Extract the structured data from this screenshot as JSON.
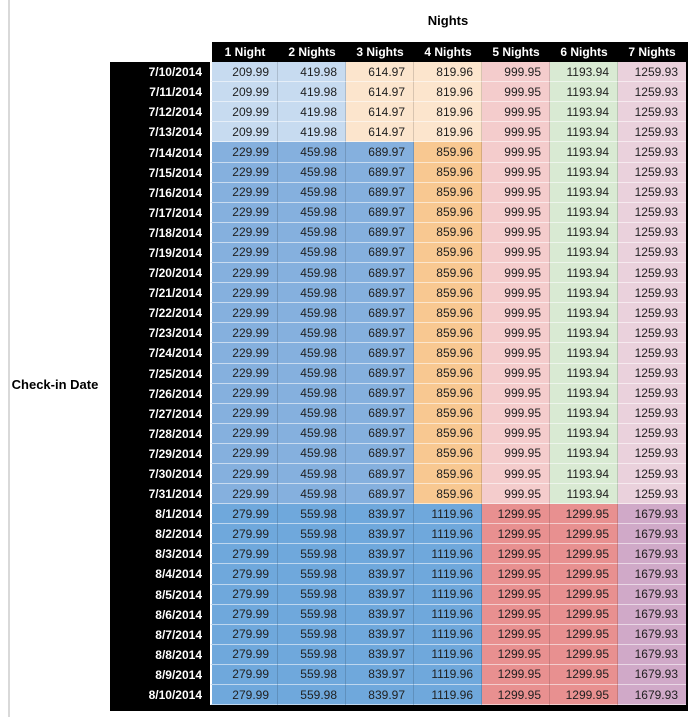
{
  "chart_data": {
    "type": "table",
    "title": "Nights",
    "row_axis_label": "Check-in Date",
    "columns": [
      "1 Night",
      "2 Nights",
      "3 Nights",
      "4 Nights",
      "5 Nights",
      "6 Nights",
      "7 Nights"
    ],
    "palette": {
      "blue_light": "#c7dbf0",
      "blue_mid": "#85b0de",
      "blue_dark": "#6fa8dc",
      "orange_light": "#fce5cd",
      "orange_mid": "#f8c891",
      "pink_light": "#f4cccc",
      "red_mid": "#e89090",
      "green_light": "#d9ead3",
      "magenta_light": "#ead1dc",
      "magenta_mid": "#d0a9c8"
    },
    "bands": {
      "early_july": [
        "blue_light",
        "blue_light",
        "orange_light",
        "orange_light",
        "pink_light",
        "green_light",
        "magenta_light"
      ],
      "mid_july": [
        "blue_mid",
        "blue_mid",
        "blue_mid",
        "orange_mid",
        "pink_light",
        "green_light",
        "magenta_light"
      ],
      "august": [
        "blue_dark",
        "blue_dark",
        "blue_dark",
        "blue_dark",
        "red_mid",
        "red_mid",
        "magenta_mid"
      ]
    },
    "header_bg": "#000000",
    "header_text_color": "#ffffff",
    "rows": [
      {
        "date": "7/10/2014",
        "band": "early_july",
        "values": [
          "209.99",
          "419.98",
          "614.97",
          "819.96",
          "999.95",
          "1193.94",
          "1259.93"
        ]
      },
      {
        "date": "7/11/2014",
        "band": "early_july",
        "values": [
          "209.99",
          "419.98",
          "614.97",
          "819.96",
          "999.95",
          "1193.94",
          "1259.93"
        ]
      },
      {
        "date": "7/12/2014",
        "band": "early_july",
        "values": [
          "209.99",
          "419.98",
          "614.97",
          "819.96",
          "999.95",
          "1193.94",
          "1259.93"
        ]
      },
      {
        "date": "7/13/2014",
        "band": "early_july",
        "values": [
          "209.99",
          "419.98",
          "614.97",
          "819.96",
          "999.95",
          "1193.94",
          "1259.93"
        ]
      },
      {
        "date": "7/14/2014",
        "band": "mid_july",
        "values": [
          "229.99",
          "459.98",
          "689.97",
          "859.96",
          "999.95",
          "1193.94",
          "1259.93"
        ]
      },
      {
        "date": "7/15/2014",
        "band": "mid_july",
        "values": [
          "229.99",
          "459.98",
          "689.97",
          "859.96",
          "999.95",
          "1193.94",
          "1259.93"
        ]
      },
      {
        "date": "7/16/2014",
        "band": "mid_july",
        "values": [
          "229.99",
          "459.98",
          "689.97",
          "859.96",
          "999.95",
          "1193.94",
          "1259.93"
        ]
      },
      {
        "date": "7/17/2014",
        "band": "mid_july",
        "values": [
          "229.99",
          "459.98",
          "689.97",
          "859.96",
          "999.95",
          "1193.94",
          "1259.93"
        ]
      },
      {
        "date": "7/18/2014",
        "band": "mid_july",
        "values": [
          "229.99",
          "459.98",
          "689.97",
          "859.96",
          "999.95",
          "1193.94",
          "1259.93"
        ]
      },
      {
        "date": "7/19/2014",
        "band": "mid_july",
        "values": [
          "229.99",
          "459.98",
          "689.97",
          "859.96",
          "999.95",
          "1193.94",
          "1259.93"
        ]
      },
      {
        "date": "7/20/2014",
        "band": "mid_july",
        "values": [
          "229.99",
          "459.98",
          "689.97",
          "859.96",
          "999.95",
          "1193.94",
          "1259.93"
        ]
      },
      {
        "date": "7/21/2014",
        "band": "mid_july",
        "values": [
          "229.99",
          "459.98",
          "689.97",
          "859.96",
          "999.95",
          "1193.94",
          "1259.93"
        ]
      },
      {
        "date": "7/22/2014",
        "band": "mid_july",
        "values": [
          "229.99",
          "459.98",
          "689.97",
          "859.96",
          "999.95",
          "1193.94",
          "1259.93"
        ]
      },
      {
        "date": "7/23/2014",
        "band": "mid_july",
        "values": [
          "229.99",
          "459.98",
          "689.97",
          "859.96",
          "999.95",
          "1193.94",
          "1259.93"
        ]
      },
      {
        "date": "7/24/2014",
        "band": "mid_july",
        "values": [
          "229.99",
          "459.98",
          "689.97",
          "859.96",
          "999.95",
          "1193.94",
          "1259.93"
        ]
      },
      {
        "date": "7/25/2014",
        "band": "mid_july",
        "values": [
          "229.99",
          "459.98",
          "689.97",
          "859.96",
          "999.95",
          "1193.94",
          "1259.93"
        ]
      },
      {
        "date": "7/26/2014",
        "band": "mid_july",
        "values": [
          "229.99",
          "459.98",
          "689.97",
          "859.96",
          "999.95",
          "1193.94",
          "1259.93"
        ]
      },
      {
        "date": "7/27/2014",
        "band": "mid_july",
        "values": [
          "229.99",
          "459.98",
          "689.97",
          "859.96",
          "999.95",
          "1193.94",
          "1259.93"
        ]
      },
      {
        "date": "7/28/2014",
        "band": "mid_july",
        "values": [
          "229.99",
          "459.98",
          "689.97",
          "859.96",
          "999.95",
          "1193.94",
          "1259.93"
        ]
      },
      {
        "date": "7/29/2014",
        "band": "mid_july",
        "values": [
          "229.99",
          "459.98",
          "689.97",
          "859.96",
          "999.95",
          "1193.94",
          "1259.93"
        ]
      },
      {
        "date": "7/30/2014",
        "band": "mid_july",
        "values": [
          "229.99",
          "459.98",
          "689.97",
          "859.96",
          "999.95",
          "1193.94",
          "1259.93"
        ]
      },
      {
        "date": "7/31/2014",
        "band": "mid_july",
        "values": [
          "229.99",
          "459.98",
          "689.97",
          "859.96",
          "999.95",
          "1193.94",
          "1259.93"
        ]
      },
      {
        "date": "8/1/2014",
        "band": "august",
        "values": [
          "279.99",
          "559.98",
          "839.97",
          "1119.96",
          "1299.95",
          "1299.95",
          "1679.93"
        ]
      },
      {
        "date": "8/2/2014",
        "band": "august",
        "values": [
          "279.99",
          "559.98",
          "839.97",
          "1119.96",
          "1299.95",
          "1299.95",
          "1679.93"
        ]
      },
      {
        "date": "8/3/2014",
        "band": "august",
        "values": [
          "279.99",
          "559.98",
          "839.97",
          "1119.96",
          "1299.95",
          "1299.95",
          "1679.93"
        ]
      },
      {
        "date": "8/4/2014",
        "band": "august",
        "values": [
          "279.99",
          "559.98",
          "839.97",
          "1119.96",
          "1299.95",
          "1299.95",
          "1679.93"
        ]
      },
      {
        "date": "8/5/2014",
        "band": "august",
        "values": [
          "279.99",
          "559.98",
          "839.97",
          "1119.96",
          "1299.95",
          "1299.95",
          "1679.93"
        ]
      },
      {
        "date": "8/6/2014",
        "band": "august",
        "values": [
          "279.99",
          "559.98",
          "839.97",
          "1119.96",
          "1299.95",
          "1299.95",
          "1679.93"
        ]
      },
      {
        "date": "8/7/2014",
        "band": "august",
        "values": [
          "279.99",
          "559.98",
          "839.97",
          "1119.96",
          "1299.95",
          "1299.95",
          "1679.93"
        ]
      },
      {
        "date": "8/8/2014",
        "band": "august",
        "values": [
          "279.99",
          "559.98",
          "839.97",
          "1119.96",
          "1299.95",
          "1299.95",
          "1679.93"
        ]
      },
      {
        "date": "8/9/2014",
        "band": "august",
        "values": [
          "279.99",
          "559.98",
          "839.97",
          "1119.96",
          "1299.95",
          "1299.95",
          "1679.93"
        ]
      },
      {
        "date": "8/10/2014",
        "band": "august",
        "values": [
          "279.99",
          "559.98",
          "839.97",
          "1119.96",
          "1299.95",
          "1299.95",
          "1679.93"
        ]
      }
    ]
  }
}
